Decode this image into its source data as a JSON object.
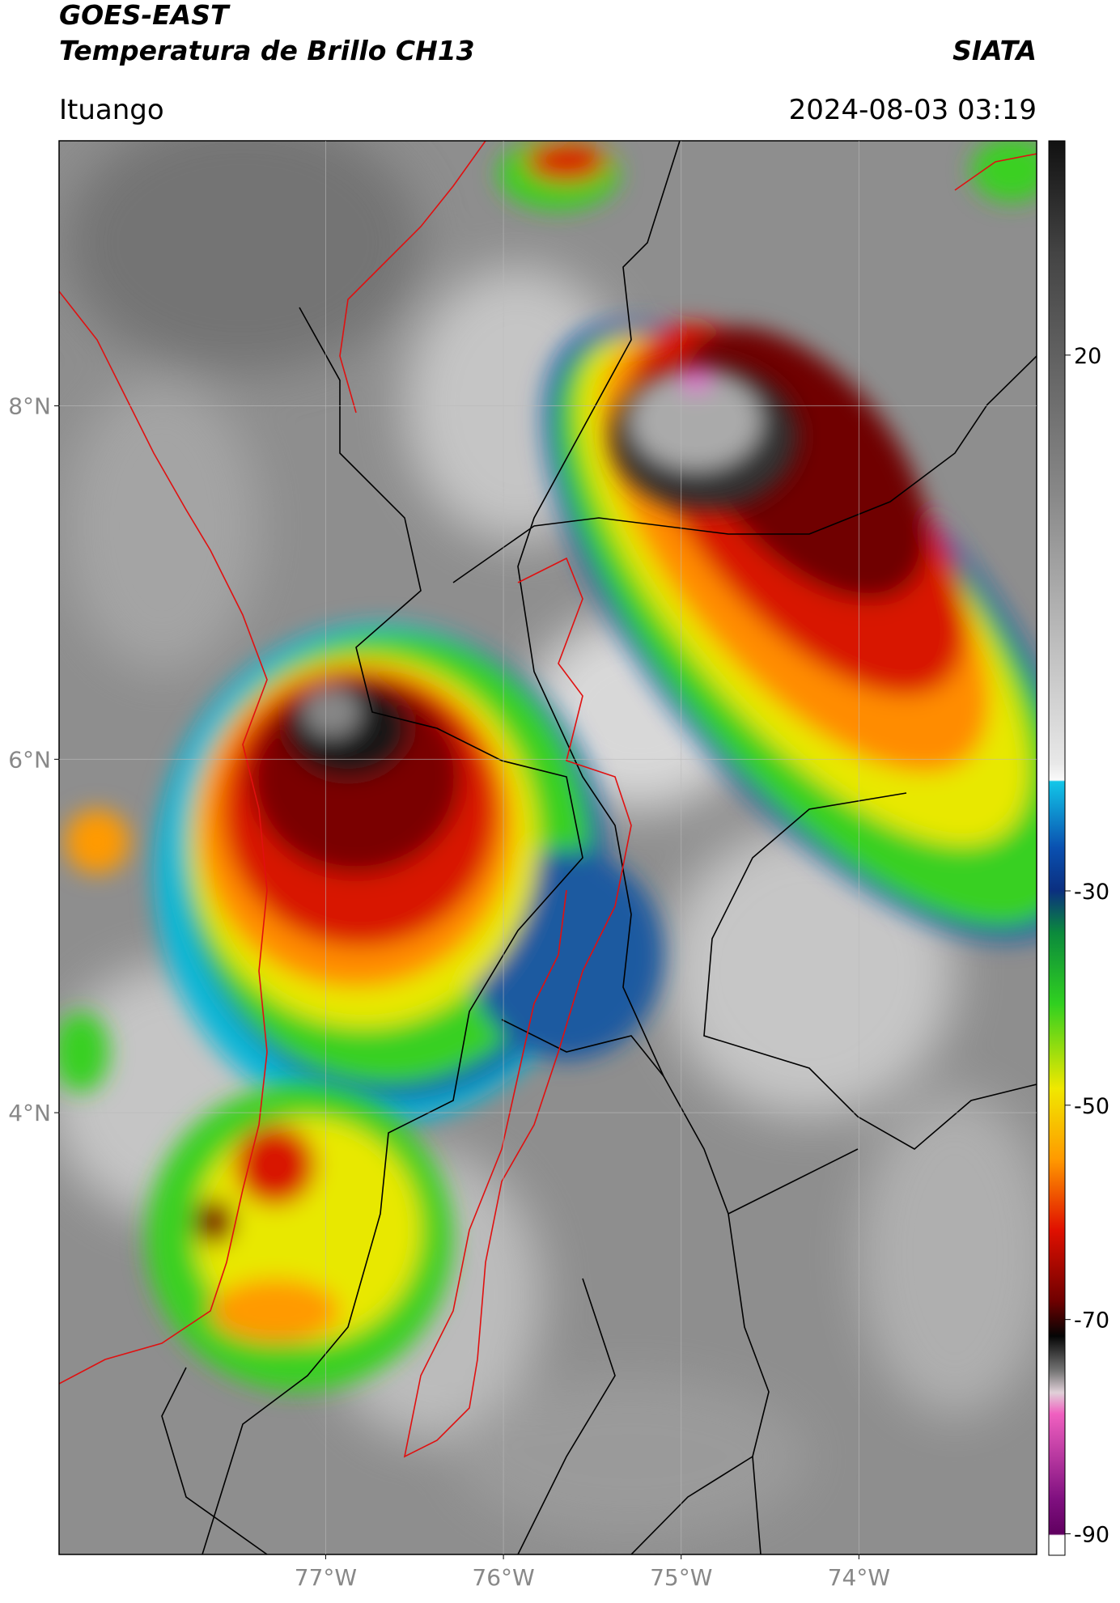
{
  "header": {
    "title": "GOES-EAST",
    "subtitle": "Temperatura de Brillo CH13",
    "source": "SIATA",
    "location": "Ituango",
    "datetime": "2024-08-03 03:19"
  },
  "map": {
    "lon_range": [
      -78.5,
      -73
    ],
    "lat_range": [
      1.5,
      9.5
    ],
    "lat_ticks": [
      {
        "value": 8,
        "label": "8°N"
      },
      {
        "value": 6,
        "label": "6°N"
      },
      {
        "value": 4,
        "label": "4°N"
      }
    ],
    "lon_ticks": [
      {
        "value": -77,
        "label": "77°W"
      },
      {
        "value": -76,
        "label": "76°W"
      },
      {
        "value": -75,
        "label": "75°W"
      },
      {
        "value": -74,
        "label": "74°W"
      }
    ]
  },
  "colorbar": {
    "range": [
      -92,
      40
    ],
    "ticks": [
      20,
      -30,
      -50,
      -70,
      -90
    ]
  }
}
